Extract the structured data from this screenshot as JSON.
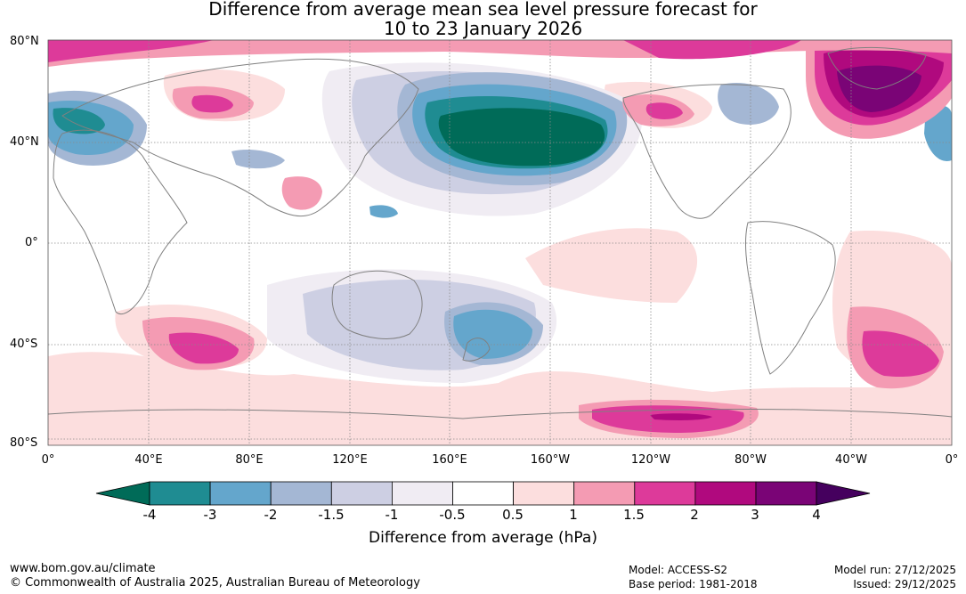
{
  "title": {
    "line1": "Difference from average mean sea level pressure forecast for",
    "line2": "10 to 23 January 2026"
  },
  "latitude_labels": [
    "80°N",
    "40°N",
    "0°",
    "40°S",
    "80°S"
  ],
  "longitude_labels": [
    "0°",
    "40°E",
    "80°E",
    "120°E",
    "160°E",
    "160°W",
    "120°W",
    "80°W",
    "40°W",
    "0°"
  ],
  "colorbar": {
    "ticks": [
      "-4",
      "-3",
      "-2",
      "-1.5",
      "-1",
      "-0.5",
      "0.5",
      "1",
      "1.5",
      "2",
      "3",
      "4"
    ],
    "colors": {
      "below_min": "#006b58",
      "bins": [
        "#1f8c92",
        "#64a6cc",
        "#a4b7d4",
        "#cdcfe3",
        "#f0ecf3",
        "#ffffff",
        "#fcdede",
        "#f49bb3",
        "#dd3a9a",
        "#b0097e",
        "#7a0476"
      ],
      "above_max": "#45005e"
    },
    "label": "Difference from average (hPa)"
  },
  "footer": {
    "website": "www.bom.gov.au/climate",
    "copyright": "© Commonwealth of Australia 2025, Australian Bureau of Meteorology",
    "model": "Model: ACCESS-S2",
    "base_period": "Base period: 1981-2018",
    "model_run": "Model run: 27/12/2025",
    "issued": "Issued: 29/12/2025"
  }
}
